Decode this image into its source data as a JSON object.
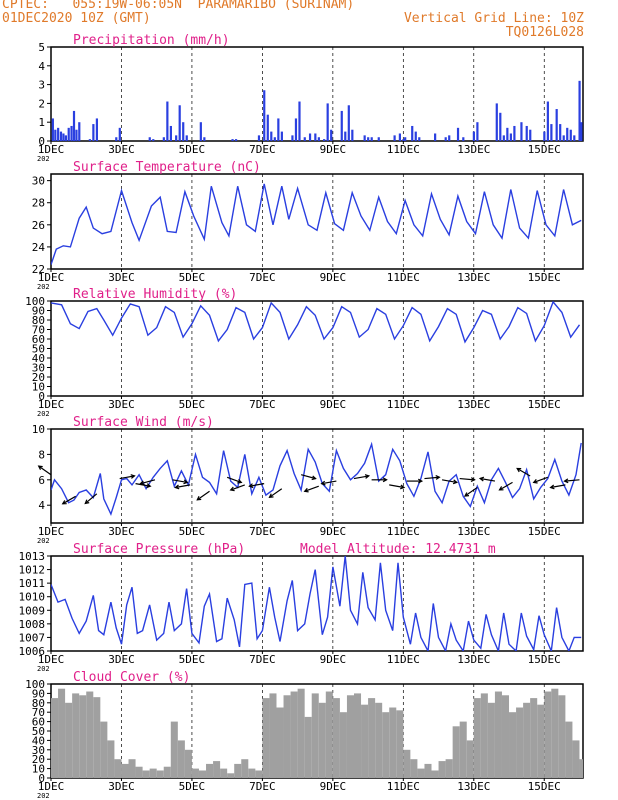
{
  "header": {
    "line1": "CPTEC:   055:19W-06:05N  PARAMARIBO (SURINAM)",
    "line2": "01DEC2020 10Z (GMT)",
    "grid_note": "Vertical Grid Line: 10Z",
    "code": "TQ0126L028"
  },
  "colors": {
    "header": "#e07a2a",
    "title": "#e0208a",
    "series": "#2a3fe0",
    "cloud": "#a0a0a0",
    "arrow": "#000000"
  },
  "x_axis": {
    "labels": [
      "1DEC",
      "3DEC",
      "5DEC",
      "7DEC",
      "9DEC",
      "11DEC",
      "13DEC",
      "15DEC"
    ],
    "label_days": [
      0,
      2,
      4,
      6,
      8,
      10,
      12,
      14
    ],
    "days_total": 15.1,
    "stub": "202"
  },
  "chart_data": [
    {
      "type": "bar",
      "name": "precipitation",
      "title": "Precipitation (mm/h)",
      "ylim": [
        0,
        5
      ],
      "yticks": [
        0,
        1,
        2,
        3,
        4,
        5
      ],
      "x": [
        0.05,
        0.12,
        0.2,
        0.28,
        0.35,
        0.42,
        0.5,
        0.58,
        0.65,
        0.72,
        0.8,
        1.1,
        1.2,
        1.3,
        1.85,
        1.95,
        2.8,
        2.9,
        3.2,
        3.3,
        3.4,
        3.55,
        3.65,
        3.75,
        3.85,
        4.25,
        4.35,
        5.15,
        5.25,
        5.9,
        6.05,
        6.15,
        6.25,
        6.35,
        6.45,
        6.55,
        6.85,
        6.95,
        7.05,
        7.2,
        7.35,
        7.5,
        7.6,
        7.75,
        7.85,
        7.95,
        8.25,
        8.35,
        8.45,
        8.55,
        8.9,
        9.0,
        9.1,
        9.3,
        9.75,
        9.9,
        10.0,
        10.05,
        10.25,
        10.35,
        10.45,
        10.9,
        11.2,
        11.3,
        11.55,
        11.7,
        12.0,
        12.1,
        12.65,
        12.75,
        12.85,
        12.95,
        13.05,
        13.15,
        13.35,
        13.5,
        13.6,
        14.0,
        14.1,
        14.2,
        14.35,
        14.45,
        14.55,
        14.65,
        14.75,
        14.85,
        15.0,
        15.05
      ],
      "values": [
        1.2,
        0.6,
        0.7,
        0.5,
        0.4,
        0.3,
        0.7,
        0.8,
        1.6,
        0.6,
        1.0,
        0.1,
        0.9,
        1.2,
        0.2,
        0.7,
        0.2,
        0.1,
        0.2,
        2.1,
        0.8,
        0.3,
        1.9,
        1.0,
        0.3,
        1.0,
        0.2,
        0.1,
        0.1,
        0.3,
        2.7,
        1.4,
        0.5,
        0.2,
        1.2,
        0.5,
        0.3,
        1.2,
        2.1,
        0.2,
        0.4,
        0.4,
        0.2,
        0.1,
        2.0,
        0.6,
        1.6,
        0.5,
        1.9,
        0.6,
        0.3,
        0.2,
        0.2,
        0.2,
        0.3,
        0.4,
        0.1,
        0.2,
        0.8,
        0.5,
        0.2,
        0.4,
        0.2,
        0.3,
        0.7,
        0.2,
        0.5,
        1.0,
        2.0,
        1.5,
        0.3,
        0.7,
        0.4,
        0.8,
        1.0,
        0.8,
        0.6,
        0.5,
        2.1,
        0.9,
        1.7,
        0.9,
        0.3,
        0.7,
        0.6,
        0.3,
        3.2,
        1.0
      ]
    },
    {
      "type": "line",
      "name": "surface-temperature",
      "title": "Surface Temperature (nC)",
      "ylim": [
        22,
        30.6
      ],
      "yticks": [
        22,
        24,
        26,
        28,
        30
      ],
      "x": [
        0,
        0.15,
        0.35,
        0.55,
        0.8,
        1.0,
        1.2,
        1.45,
        1.7,
        2.0,
        2.3,
        2.5,
        2.85,
        3.1,
        3.3,
        3.55,
        3.8,
        4.05,
        4.35,
        4.55,
        4.85,
        5.05,
        5.3,
        5.55,
        5.8,
        6.05,
        6.3,
        6.55,
        6.75,
        7.0,
        7.3,
        7.55,
        7.8,
        8.05,
        8.3,
        8.55,
        8.8,
        9.05,
        9.3,
        9.55,
        9.8,
        10.05,
        10.3,
        10.55,
        10.8,
        11.05,
        11.3,
        11.55,
        11.8,
        12.05,
        12.3,
        12.55,
        12.8,
        13.05,
        13.3,
        13.55,
        13.8,
        14.05,
        14.3,
        14.55,
        14.8,
        15.05
      ],
      "values": [
        22.4,
        23.8,
        24.1,
        24.0,
        26.6,
        27.6,
        25.7,
        25.2,
        25.4,
        29.1,
        26.2,
        24.6,
        27.7,
        28.5,
        25.4,
        25.3,
        29.0,
        26.8,
        24.7,
        29.5,
        26.2,
        25.0,
        29.5,
        26.0,
        25.4,
        29.7,
        26.0,
        29.5,
        26.5,
        29.3,
        26.0,
        25.5,
        28.9,
        26.1,
        25.5,
        28.9,
        26.8,
        25.5,
        28.5,
        26.3,
        25.2,
        28.2,
        26.0,
        25.0,
        28.8,
        26.5,
        25.1,
        28.6,
        26.3,
        25.2,
        29.0,
        26.0,
        24.8,
        29.2,
        25.7,
        24.8,
        29.1,
        26.0,
        25.0,
        29.2,
        26.0,
        26.4
      ]
    },
    {
      "type": "line",
      "name": "relative-humidity",
      "title": "Relative Humidity (%)",
      "ylim": [
        0,
        100
      ],
      "yticks": [
        0,
        10,
        20,
        30,
        40,
        50,
        60,
        70,
        80,
        90,
        100
      ],
      "x": [
        0,
        0.3,
        0.55,
        0.8,
        1.05,
        1.3,
        1.5,
        1.75,
        2.0,
        2.25,
        2.5,
        2.75,
        3.0,
        3.25,
        3.5,
        3.75,
        4.0,
        4.25,
        4.5,
        4.75,
        5.0,
        5.25,
        5.5,
        5.75,
        6.0,
        6.25,
        6.5,
        6.75,
        7.0,
        7.25,
        7.5,
        7.75,
        8.0,
        8.25,
        8.5,
        8.75,
        9.0,
        9.25,
        9.5,
        9.75,
        10.0,
        10.25,
        10.5,
        10.75,
        11.0,
        11.25,
        11.5,
        11.75,
        12.0,
        12.25,
        12.5,
        12.75,
        13.0,
        13.25,
        13.5,
        13.75,
        14.0,
        14.25,
        14.5,
        14.75,
        15.0
      ],
      "values": [
        98,
        96,
        76,
        71,
        89,
        92,
        80,
        64,
        82,
        97,
        94,
        64,
        72,
        94,
        88,
        62,
        76,
        95,
        85,
        58,
        70,
        93,
        88,
        60,
        72,
        98,
        88,
        60,
        75,
        94,
        85,
        60,
        72,
        94,
        88,
        62,
        70,
        92,
        86,
        60,
        74,
        93,
        86,
        58,
        73,
        92,
        86,
        57,
        72,
        90,
        86,
        60,
        73,
        93,
        87,
        58,
        74,
        99,
        88,
        62,
        75
      ]
    },
    {
      "type": "line",
      "name": "surface-wind",
      "title": "Surface Wind (m/s)",
      "ylim": [
        2.6,
        10
      ],
      "yticks": [
        4,
        6,
        8,
        10
      ],
      "x": [
        0,
        0.1,
        0.3,
        0.5,
        0.65,
        0.8,
        1.0,
        1.2,
        1.4,
        1.5,
        1.7,
        1.85,
        2.0,
        2.15,
        2.3,
        2.5,
        2.7,
        2.9,
        3.1,
        3.3,
        3.5,
        3.7,
        3.9,
        4.1,
        4.3,
        4.5,
        4.7,
        4.9,
        5.1,
        5.3,
        5.5,
        5.7,
        5.9,
        6.1,
        6.3,
        6.5,
        6.7,
        6.9,
        7.1,
        7.3,
        7.5,
        7.7,
        7.9,
        8.1,
        8.3,
        8.5,
        8.7,
        8.9,
        9.1,
        9.3,
        9.5,
        9.7,
        9.9,
        10.1,
        10.3,
        10.5,
        10.7,
        10.9,
        11.1,
        11.3,
        11.5,
        11.7,
        11.9,
        12.1,
        12.3,
        12.5,
        12.7,
        12.9,
        13.1,
        13.3,
        13.5,
        13.7,
        13.9,
        14.1,
        14.3,
        14.5,
        14.7,
        14.9,
        15.05
      ],
      "values": [
        5.2,
        6.0,
        5.3,
        4.2,
        4.4,
        5.0,
        5.2,
        4.6,
        6.5,
        4.5,
        3.3,
        4.6,
        6.0,
        6.1,
        5.6,
        6.4,
        5.3,
        6.2,
        6.9,
        7.5,
        5.5,
        6.7,
        5.6,
        8.0,
        6.2,
        5.8,
        4.9,
        8.3,
        5.9,
        5.4,
        8.0,
        4.9,
        6.2,
        4.8,
        5.2,
        7.1,
        8.3,
        6.5,
        5.2,
        8.4,
        7.4,
        5.7,
        5.1,
        8.3,
        6.9,
        6.0,
        6.5,
        7.3,
        8.8,
        5.9,
        6.4,
        8.4,
        7.5,
        5.7,
        4.7,
        6.1,
        8.2,
        5.1,
        4.2,
        5.9,
        6.4,
        4.7,
        3.9,
        5.5,
        4.2,
        6.0,
        6.9,
        5.8,
        4.6,
        5.3,
        6.8,
        4.5,
        5.4,
        6.1,
        7.6,
        5.9,
        4.8,
        6.4,
        8.9
      ]
    },
    {
      "type": "line",
      "name": "surface-pressure",
      "title": "Surface Pressure (hPa)",
      "model_altitude": "Model Altitude: 12.4731 m",
      "ylim": [
        1006,
        1013
      ],
      "yticks": [
        1006,
        1007,
        1008,
        1009,
        1010,
        1011,
        1012,
        1013
      ],
      "x": [
        0,
        0.2,
        0.4,
        0.6,
        0.8,
        1.0,
        1.2,
        1.35,
        1.5,
        1.7,
        1.85,
        2.0,
        2.15,
        2.3,
        2.45,
        2.6,
        2.8,
        3.0,
        3.2,
        3.35,
        3.5,
        3.7,
        3.85,
        4.0,
        4.2,
        4.35,
        4.5,
        4.7,
        4.85,
        5.0,
        5.2,
        5.35,
        5.5,
        5.7,
        5.85,
        6.0,
        6.2,
        6.35,
        6.5,
        6.7,
        6.85,
        7.0,
        7.2,
        7.35,
        7.5,
        7.7,
        7.85,
        8.0,
        8.2,
        8.35,
        8.5,
        8.7,
        8.85,
        9.0,
        9.2,
        9.35,
        9.5,
        9.7,
        9.85,
        10.0,
        10.2,
        10.35,
        10.5,
        10.7,
        10.85,
        11.0,
        11.2,
        11.35,
        11.5,
        11.7,
        11.85,
        12.0,
        12.2,
        12.35,
        12.5,
        12.7,
        12.85,
        13.0,
        13.2,
        13.35,
        13.5,
        13.7,
        13.85,
        14.0,
        14.2,
        14.35,
        14.5,
        14.7,
        14.85,
        15.05
      ],
      "values": [
        1010.9,
        1009.6,
        1009.8,
        1008.4,
        1007.3,
        1008.2,
        1010.1,
        1007.5,
        1007.2,
        1009.6,
        1007.7,
        1006.5,
        1009.4,
        1010.7,
        1007.3,
        1007.5,
        1009.4,
        1006.8,
        1007.3,
        1009.6,
        1007.5,
        1008.0,
        1010.6,
        1007.3,
        1006.6,
        1009.3,
        1010.2,
        1006.7,
        1006.9,
        1009.9,
        1008.3,
        1006.3,
        1010.9,
        1011.0,
        1006.9,
        1007.5,
        1010.7,
        1008.5,
        1006.7,
        1009.7,
        1011.2,
        1007.5,
        1008.0,
        1010.2,
        1012.0,
        1007.2,
        1008.5,
        1012.2,
        1009.3,
        1013.0,
        1009.0,
        1008.0,
        1011.8,
        1009.2,
        1008.3,
        1012.5,
        1009.0,
        1007.5,
        1012.5,
        1008.5,
        1006.5,
        1008.8,
        1007.0,
        1006.0,
        1009.5,
        1007.0,
        1006.0,
        1008.0,
        1006.8,
        1006.0,
        1008.2,
        1006.8,
        1006.2,
        1008.7,
        1007.2,
        1006.0,
        1008.8,
        1006.5,
        1006.0,
        1008.8,
        1007.1,
        1006.1,
        1008.6,
        1007.2,
        1006.0,
        1009.2,
        1007.0,
        1006.0,
        1007.0,
        1007.0
      ]
    },
    {
      "type": "area",
      "name": "cloud-cover",
      "title": "Cloud Cover (%)",
      "ylim": [
        0,
        100
      ],
      "yticks": [
        0,
        10,
        20,
        30,
        40,
        50,
        60,
        70,
        80,
        90,
        100
      ],
      "x": [
        0,
        0.2,
        0.4,
        0.6,
        0.8,
        1.0,
        1.2,
        1.4,
        1.6,
        1.8,
        2.0,
        2.2,
        2.4,
        2.6,
        2.8,
        3.0,
        3.2,
        3.4,
        3.6,
        3.8,
        4.0,
        4.2,
        4.4,
        4.6,
        4.8,
        5.0,
        5.2,
        5.4,
        5.6,
        5.8,
        6.0,
        6.2,
        6.4,
        6.6,
        6.8,
        7.0,
        7.2,
        7.4,
        7.6,
        7.8,
        8.0,
        8.2,
        8.4,
        8.6,
        8.8,
        9.0,
        9.2,
        9.4,
        9.6,
        9.8,
        10.0,
        10.2,
        10.4,
        10.6,
        10.8,
        11.0,
        11.2,
        11.4,
        11.6,
        11.8,
        12.0,
        12.2,
        12.4,
        12.6,
        12.8,
        13.0,
        13.2,
        13.4,
        13.6,
        13.8,
        14.0,
        14.2,
        14.4,
        14.6,
        14.8,
        15.0
      ],
      "values": [
        85,
        95,
        80,
        90,
        88,
        92,
        86,
        60,
        40,
        20,
        15,
        20,
        12,
        8,
        10,
        8,
        12,
        60,
        40,
        30,
        10,
        8,
        15,
        18,
        10,
        5,
        15,
        20,
        10,
        8,
        85,
        90,
        75,
        88,
        92,
        95,
        65,
        90,
        80,
        92,
        85,
        70,
        88,
        90,
        78,
        85,
        80,
        70,
        75,
        72,
        30,
        20,
        10,
        15,
        8,
        18,
        20,
        55,
        60,
        40,
        85,
        90,
        80,
        92,
        88,
        70,
        75,
        80,
        85,
        78,
        92,
        95,
        88,
        60,
        40,
        20
      ]
    }
  ],
  "wind_arrows": {
    "x": [
      0,
      0.7,
      1.3,
      1.95,
      2.4,
      2.95,
      3.45,
      3.95,
      4.5,
      5.0,
      5.5,
      6.05,
      6.55,
      7.1,
      7.6,
      8.1,
      8.6,
      9.1,
      9.6,
      10.1,
      10.6,
      11.1,
      11.6,
      12.1,
      12.6,
      13.1,
      13.6,
      14.1,
      14.6,
      15.0
    ],
    "y": [
      6.4,
      4.7,
      4.9,
      6.1,
      5.7,
      6.0,
      6.0,
      5.6,
      5.1,
      6.2,
      5.6,
      5.7,
      5.3,
      6.4,
      5.5,
      5.9,
      6.1,
      6.0,
      5.6,
      5.9,
      6.1,
      6.0,
      6.1,
      5.4,
      5.9,
      5.8,
      6.3,
      6.2,
      5.6,
      6.0
    ],
    "dir_deg": [
      145,
      210,
      220,
      10,
      350,
      195,
      350,
      190,
      215,
      340,
      200,
      190,
      215,
      345,
      200,
      190,
      10,
      0,
      350,
      0,
      5,
      350,
      355,
      215,
      170,
      210,
      150,
      200,
      190,
      185
    ]
  }
}
